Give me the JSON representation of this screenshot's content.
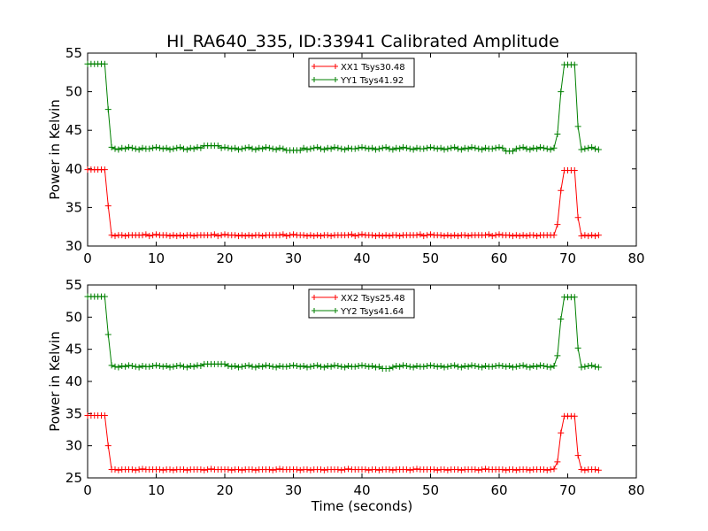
{
  "figure": {
    "title": "HI_RA640_335, ID:33941 Calibrated Amplitude"
  },
  "chart_data": [
    {
      "type": "line",
      "title": "HI_RA640_335, ID:33941 Calibrated Amplitude",
      "xlabel": "",
      "ylabel": "Power in Kelvin",
      "xlim": [
        0,
        80
      ],
      "ylim": [
        30,
        55
      ],
      "xticks": [
        0,
        10,
        20,
        30,
        40,
        50,
        60,
        70,
        80
      ],
      "yticks": [
        30,
        35,
        40,
        45,
        50,
        55
      ],
      "grid": false,
      "legend_position": "top-center",
      "x_sampling": {
        "start": 0,
        "step": 0.5,
        "count": 150
      },
      "series": [
        {
          "name": "XX1 Tsys30.48",
          "color": "#ff0000",
          "marker": "+",
          "low": 31.4,
          "high": 39.9,
          "noise": [
            31.5,
            31.4,
            31.4,
            31.4,
            31.3,
            31.4,
            31.3,
            31.4,
            31.3,
            31.4,
            31.4,
            31.3,
            31.4,
            31.4,
            31.4,
            31.4,
            31.4,
            31.5,
            31.3,
            31.4
          ],
          "segments": [
            {
              "x_from": 0,
              "x_to": 2.5,
              "value": 39.9
            },
            {
              "x": 3.0,
              "value": 35.2
            },
            {
              "x": 68.5,
              "value": 32.8
            },
            {
              "x": 69.0,
              "value": 37.2
            },
            {
              "x_from": 69.5,
              "x_to": 71.0,
              "value": 39.8
            },
            {
              "x": 71.5,
              "value": 33.7
            }
          ]
        },
        {
          "name": "YY1 Tsys41.92",
          "color": "#008000",
          "marker": "+",
          "low": 42.6,
          "high": 53.6,
          "noise": [
            42.8,
            42.7,
            42.6,
            42.7,
            42.5,
            42.6,
            42.7,
            42.8,
            42.6,
            42.5,
            42.7,
            42.6,
            42.8,
            42.7,
            42.6,
            42.5,
            42.7,
            42.6,
            42.6,
            42.7
          ],
          "bumps": [
            {
              "x_from": 17,
              "x_to": 19,
              "value": 43.0
            },
            {
              "x_from": 29,
              "x_to": 31,
              "value": 42.4
            },
            {
              "x_from": 61,
              "x_to": 62,
              "value": 42.3
            }
          ],
          "segments": [
            {
              "x_from": 0,
              "x_to": 2.5,
              "value": 53.6
            },
            {
              "x": 3.0,
              "value": 47.7
            },
            {
              "x": 68.5,
              "value": 44.5
            },
            {
              "x": 69.0,
              "value": 50.0
            },
            {
              "x_from": 69.5,
              "x_to": 71.0,
              "value": 53.5
            },
            {
              "x": 71.5,
              "value": 45.5
            }
          ]
        }
      ]
    },
    {
      "type": "line",
      "title": "",
      "xlabel": "Time (seconds)",
      "ylabel": "Power in Kelvin",
      "xlim": [
        0,
        80
      ],
      "ylim": [
        25,
        55
      ],
      "xticks": [
        0,
        10,
        20,
        30,
        40,
        50,
        60,
        70,
        80
      ],
      "yticks": [
        25,
        30,
        35,
        40,
        45,
        50,
        55
      ],
      "grid": false,
      "legend_position": "top-center",
      "x_sampling": {
        "start": 0,
        "step": 0.5,
        "count": 150
      },
      "series": [
        {
          "name": "XX2 Tsys25.48",
          "color": "#ff0000",
          "marker": "+",
          "low": 26.3,
          "high": 34.7,
          "noise": [
            26.3,
            26.3,
            26.2,
            26.3,
            26.3,
            26.2,
            26.3,
            26.3,
            26.3,
            26.2,
            26.3,
            26.3,
            26.3,
            26.3,
            26.2,
            26.3,
            26.4,
            26.3,
            26.3,
            26.3
          ],
          "segments": [
            {
              "x_from": 0,
              "x_to": 2.5,
              "value": 34.7
            },
            {
              "x": 3.0,
              "value": 30.0
            },
            {
              "x": 68.5,
              "value": 27.5
            },
            {
              "x": 69.0,
              "value": 32.0
            },
            {
              "x_from": 69.5,
              "x_to": 71.0,
              "value": 34.6
            },
            {
              "x": 71.5,
              "value": 28.5
            }
          ]
        },
        {
          "name": "YY2 Tsys41.64",
          "color": "#008000",
          "marker": "+",
          "low": 42.3,
          "high": 53.2,
          "noise": [
            42.5,
            42.4,
            42.3,
            42.4,
            42.2,
            42.3,
            42.4,
            42.5,
            42.3,
            42.2,
            42.4,
            42.3,
            42.5,
            42.4,
            42.3,
            42.2,
            42.4,
            42.3,
            42.3,
            42.4
          ],
          "bumps": [
            {
              "x_from": 17,
              "x_to": 20,
              "value": 42.7
            },
            {
              "x_from": 43,
              "x_to": 44,
              "value": 42.0
            }
          ],
          "segments": [
            {
              "x_from": 0,
              "x_to": 2.5,
              "value": 53.2
            },
            {
              "x": 3.0,
              "value": 47.3
            },
            {
              "x": 68.5,
              "value": 44.0
            },
            {
              "x": 69.0,
              "value": 49.7
            },
            {
              "x_from": 69.5,
              "x_to": 71.0,
              "value": 53.1
            },
            {
              "x": 71.5,
              "value": 45.2
            }
          ]
        }
      ]
    }
  ]
}
